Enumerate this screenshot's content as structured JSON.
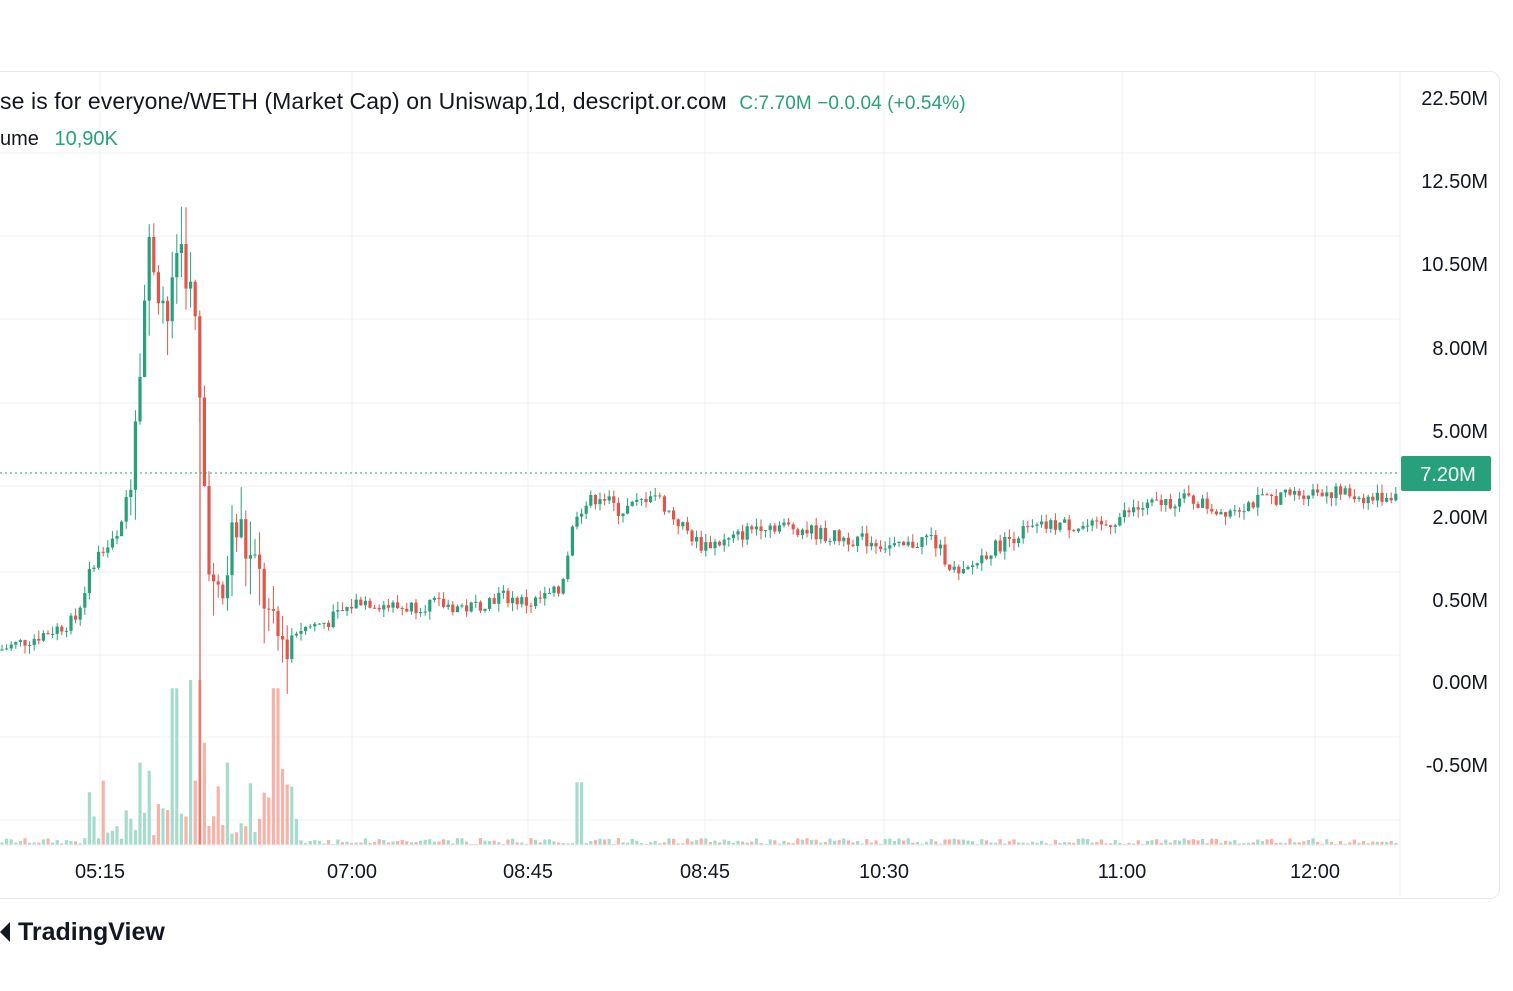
{
  "header": {
    "title": "se  is for everyone/WETH (Market Cap) on Uniswap,1d, descript.or.coм",
    "ohlc": "C:7.70M −0.0.04 (+0.54%)",
    "volume_label": "ume",
    "volume_value": "10,90K"
  },
  "brand": {
    "name": "TradingView"
  },
  "colors": {
    "up": "#26a17b",
    "down": "#e0564a",
    "up_vol": "#a6dccd",
    "down_vol": "#f7b3a8",
    "grid": "#f0f1f3"
  },
  "chart_data": {
    "type": "candlestick",
    "y_axis_ticks": [
      "22.50M",
      "12.50M",
      "10.50M",
      "8.00M",
      "5.00M",
      "2.00M",
      "0.50M",
      "0.00M",
      "-0.50M"
    ],
    "x_axis_ticks": [
      "05:15",
      "07:00",
      "08:45",
      "08:45",
      "10:30",
      "11:00",
      "12:00"
    ],
    "last_price_label": "7.20M",
    "close_path": [
      [
        0,
        2.3
      ],
      [
        35,
        2.6
      ],
      [
        75,
        3.0
      ],
      [
        95,
        4.5
      ],
      [
        120,
        5.0
      ],
      [
        130,
        6.5
      ],
      [
        140,
        9.5
      ],
      [
        150,
        12.0
      ],
      [
        160,
        11.0
      ],
      [
        170,
        10.0
      ],
      [
        178,
        12.2
      ],
      [
        186,
        11.5
      ],
      [
        196,
        9.8
      ],
      [
        200,
        8.0
      ],
      [
        206,
        5.5
      ],
      [
        214,
        3.5
      ],
      [
        222,
        3.3
      ],
      [
        232,
        5.0
      ],
      [
        240,
        5.2
      ],
      [
        248,
        4.5
      ],
      [
        262,
        3.8
      ],
      [
        272,
        2.6
      ],
      [
        282,
        2.5
      ],
      [
        300,
        2.8
      ],
      [
        330,
        3.0
      ],
      [
        360,
        3.5
      ],
      [
        400,
        3.3
      ],
      [
        430,
        3.4
      ],
      [
        470,
        3.3
      ],
      [
        500,
        3.6
      ],
      [
        530,
        3.4
      ],
      [
        560,
        3.7
      ],
      [
        576,
        5.6
      ],
      [
        600,
        6.0
      ],
      [
        620,
        5.6
      ],
      [
        640,
        5.8
      ],
      [
        652,
        6.1
      ],
      [
        672,
        5.5
      ],
      [
        700,
        4.8
      ],
      [
        730,
        4.9
      ],
      [
        760,
        5.3
      ],
      [
        800,
        5.2
      ],
      [
        830,
        5.0
      ],
      [
        870,
        4.9
      ],
      [
        900,
        4.7
      ],
      [
        930,
        5.0
      ],
      [
        960,
        4.0
      ],
      [
        985,
        4.6
      ],
      [
        1020,
        5.1
      ],
      [
        1060,
        5.3
      ],
      [
        1100,
        5.2
      ],
      [
        1130,
        5.6
      ],
      [
        1160,
        5.8
      ],
      [
        1190,
        5.9
      ],
      [
        1220,
        5.6
      ],
      [
        1250,
        5.8
      ],
      [
        1290,
        6.0
      ],
      [
        1320,
        6.1
      ],
      [
        1350,
        6.0
      ],
      [
        1370,
        5.9
      ],
      [
        1395,
        6.0
      ]
    ],
    "volume_spikes": [
      [
        88,
        0.32
      ],
      [
        140,
        0.5
      ],
      [
        150,
        0.45
      ],
      [
        175,
        0.95
      ],
      [
        192,
        1.0
      ],
      [
        200,
        1.0
      ],
      [
        205,
        0.62
      ],
      [
        228,
        0.5
      ],
      [
        275,
        0.95
      ],
      [
        280,
        0.46
      ],
      [
        580,
        0.38
      ]
    ]
  }
}
